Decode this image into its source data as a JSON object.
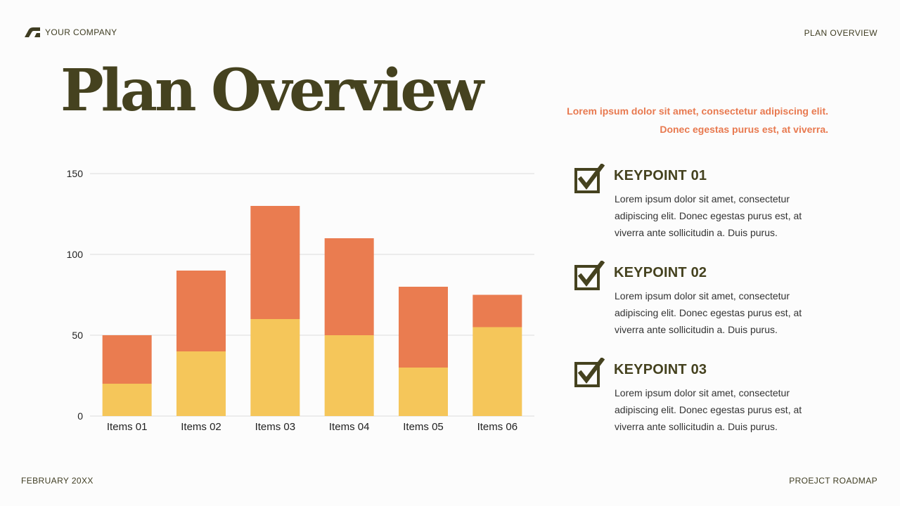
{
  "header": {
    "company": "YOUR COMPANY",
    "section": "PLAN OVERVIEW"
  },
  "title": "Plan Overview",
  "intro": "Lorem ipsum dolor sit amet, consectetur adipiscing elit. Donec egestas purus est, at viverra.",
  "keypoints": [
    {
      "title": "KEYPOINT 01",
      "text": "Lorem ipsum dolor sit amet, consectetur adipiscing elit. Donec egestas purus est, at viverra ante sollicitudin a. Duis purus."
    },
    {
      "title": "KEYPOINT 02",
      "text": "Lorem ipsum dolor sit amet, consectetur adipiscing elit. Donec egestas purus est, at viverra ante sollicitudin a. Duis purus."
    },
    {
      "title": "KEYPOINT 03",
      "text": "Lorem ipsum dolor sit amet, consectetur adipiscing elit. Donec egestas purus est, at viverra ante sollicitudin a. Duis purus."
    }
  ],
  "footer": {
    "date": "FEBRUARY 20XX",
    "project": "PROEJCT ROADMAP"
  },
  "colors": {
    "accent": "#e8794f",
    "primary": "#45421f",
    "bar_bottom": "#f5c65a",
    "bar_top": "#ea7c50"
  },
  "chart_data": {
    "type": "bar",
    "stacked": true,
    "categories": [
      "Items 01",
      "Items 02",
      "Items 03",
      "Items 04",
      "Items 05",
      "Items 06"
    ],
    "series": [
      {
        "values": [
          20,
          40,
          60,
          50,
          30,
          55
        ],
        "color": "#f5c65a"
      },
      {
        "values": [
          30,
          50,
          70,
          60,
          50,
          20
        ],
        "color": "#ea7c50"
      }
    ],
    "yticks": [
      0,
      50,
      100,
      150
    ],
    "ylim": [
      0,
      150
    ],
    "grid": true
  }
}
